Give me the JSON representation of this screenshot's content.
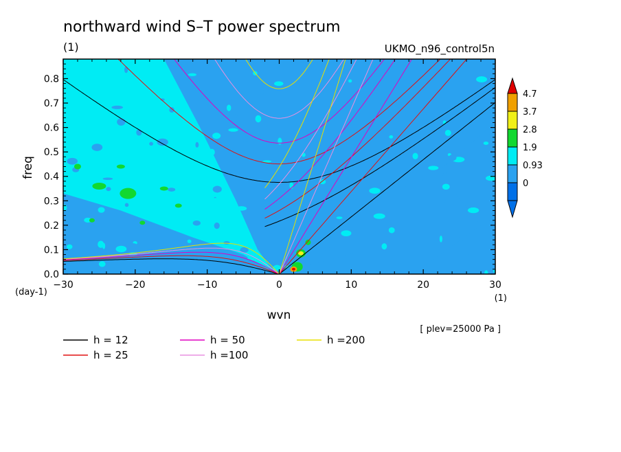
{
  "chart_data": {
    "type": "heatmap",
    "title": "northward wind S–T power spectrum",
    "subtitle_left": "(1)",
    "subtitle_right": "UKMO_n96_control5n",
    "xlabel": "wvn",
    "ylabel": "freq",
    "x_unit": "(1)",
    "y_unit": "(day-1)",
    "xlim": [
      -30,
      30
    ],
    "ylim": [
      0,
      0.88
    ],
    "x_ticks": [
      -30,
      -20,
      -10,
      0,
      10,
      20,
      30
    ],
    "x_tick_labels": [
      "−30",
      "−20",
      "−10",
      "0",
      "10",
      "20",
      "30"
    ],
    "y_ticks": [
      0.0,
      0.1,
      0.2,
      0.3,
      0.4,
      0.5,
      0.6,
      0.7,
      0.8
    ],
    "y_tick_labels": [
      "0.0",
      "0.1",
      "0.2",
      "0.3",
      "0.4",
      "0.5",
      "0.6",
      "0.7",
      "0.8"
    ],
    "level_note": "[ plev=25000 Pa ]",
    "colorbar": {
      "levels": [
        "0",
        "0.93",
        "1.9",
        "2.8",
        "3.7",
        "4.7"
      ],
      "colors": [
        "#0070e8",
        "#2aa2f0",
        "#00ecf4",
        "#12d830",
        "#f0f018",
        "#f0a000",
        "#e00000"
      ]
    },
    "legend": [
      {
        "label": "h = 12",
        "color": "#000000"
      },
      {
        "label": "h = 25",
        "color": "#e01010"
      },
      {
        "label": "h = 50",
        "color": "#e000c0"
      },
      {
        "label": "h =100",
        "color": "#e890e0"
      },
      {
        "label": "h =200",
        "color": "#e8e000"
      }
    ],
    "curves": [
      {
        "kind": "inertia-gravity",
        "h": 12,
        "color": "#000000"
      },
      {
        "kind": "inertia-gravity",
        "h": 25,
        "color": "#e01010"
      },
      {
        "kind": "inertia-gravity",
        "h": 50,
        "color": "#e000c0"
      },
      {
        "kind": "inertia-gravity",
        "h": 100,
        "color": "#e890e0"
      },
      {
        "kind": "inertia-gravity",
        "h": 200,
        "color": "#e8e000"
      }
    ],
    "grid": false
  }
}
